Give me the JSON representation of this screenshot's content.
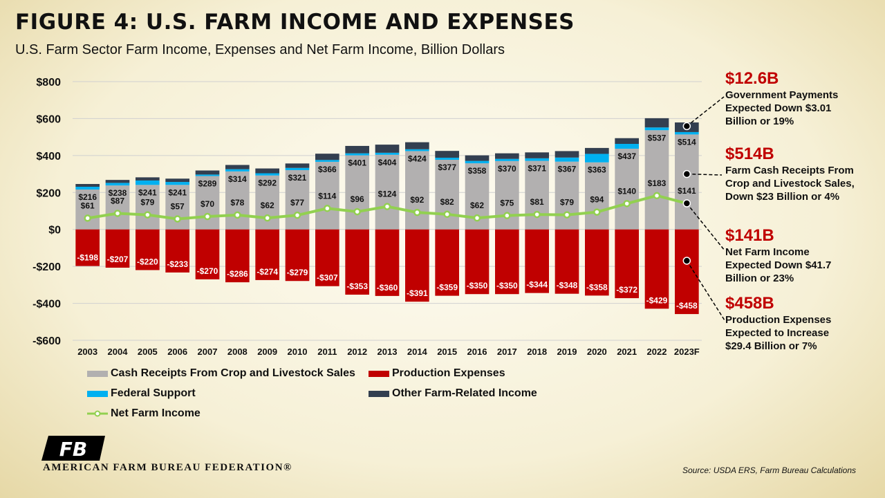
{
  "header": {
    "title": "FIGURE 4: U.S. FARM INCOME AND EXPENSES",
    "subtitle": "U.S. Farm Sector Farm Income, Expenses and Net Farm Income, Billion Dollars"
  },
  "colors": {
    "cash": "#b2b0b0",
    "expenses": "#c00000",
    "federal": "#00b0f0",
    "other": "#333f50",
    "net": "#92d050"
  },
  "chart_data": {
    "type": "bar",
    "stacked": true,
    "categories": [
      "2003",
      "2004",
      "2005",
      "2006",
      "2007",
      "2008",
      "2009",
      "2010",
      "2011",
      "2012",
      "2013",
      "2014",
      "2015",
      "2016",
      "2017",
      "2018",
      "2019",
      "2020",
      "2021",
      "2022",
      "2023F"
    ],
    "ylim": [
      -600,
      800
    ],
    "yticks": [
      800,
      600,
      400,
      200,
      0,
      -200,
      -400,
      -600
    ],
    "ytick_labels": [
      "$800",
      "$600",
      "$400",
      "$200",
      "$0",
      "-$200",
      "-$400",
      "-$600"
    ],
    "grid": true,
    "legend_position": "bottom",
    "series": [
      {
        "name": "Cash Receipts From Crop and Livestock Sales",
        "type": "bar",
        "values": [
          216,
          238,
          241,
          241,
          289,
          314,
          292,
          321,
          366,
          401,
          404,
          424,
          377,
          358,
          370,
          371,
          367,
          363,
          437,
          537,
          514
        ],
        "labels": [
          "$216",
          "$238",
          "$241",
          "$241",
          "$289",
          "$314",
          "$292",
          "$321",
          "$366",
          "$401",
          "$404",
          "$424",
          "$377",
          "$358",
          "$370",
          "$371",
          "$367",
          "$363",
          "$437",
          "$537",
          "$514"
        ]
      },
      {
        "name": "Production Expenses",
        "type": "bar",
        "values": [
          -198,
          -207,
          -220,
          -233,
          -270,
          -286,
          -274,
          -279,
          -307,
          -353,
          -360,
          -391,
          -359,
          -350,
          -350,
          -344,
          -348,
          -358,
          -372,
          -429,
          -458
        ],
        "labels": [
          "-$198",
          "-$207",
          "-$220",
          "-$233",
          "-$270",
          "-$286",
          "-$274",
          "-$279",
          "-$307",
          "-$353",
          "-$360",
          "-$391",
          "-$359",
          "-$350",
          "-$350",
          "-$344",
          "-$348",
          "-$358",
          "-$372",
          "-$429",
          "-$458"
        ]
      },
      {
        "name": "Federal Support",
        "type": "bar",
        "values": [
          15,
          14,
          24,
          16,
          8,
          12,
          12,
          12,
          10,
          11,
          11,
          10,
          11,
          13,
          12,
          14,
          22,
          46,
          26,
          15,
          13
        ]
      },
      {
        "name": "Other Farm-Related Income",
        "type": "bar",
        "values": [
          15,
          16,
          17,
          18,
          22,
          23,
          26,
          24,
          34,
          40,
          44,
          38,
          37,
          30,
          30,
          32,
          35,
          32,
          31,
          50,
          52
        ]
      },
      {
        "name": "Net Farm Income",
        "type": "line",
        "values": [
          61,
          87,
          79,
          57,
          70,
          78,
          62,
          77,
          114,
          96,
          124,
          92,
          82,
          62,
          75,
          81,
          79,
          94,
          140,
          183,
          141
        ],
        "labels": [
          "$61",
          "$87",
          "$79",
          "$57",
          "$70",
          "$78",
          "$62",
          "$77",
          "$114",
          "$96",
          "$124",
          "$92",
          "$82",
          "$62",
          "$75",
          "$81",
          "$79",
          "$94",
          "$140",
          "$183",
          "$141"
        ]
      }
    ]
  },
  "annotations": [
    {
      "value": "$12.6B",
      "text": [
        "Government Payments",
        "Expected Down $3.01",
        "Billion or 19%"
      ]
    },
    {
      "value": "$514B",
      "text": [
        "Farm Cash Receipts From",
        "Crop and Livestock Sales,",
        "Down $23 Billion or 4%"
      ]
    },
    {
      "value": "$141B",
      "text": [
        "Net Farm Income",
        "Expected Down $41.7",
        "Billion or 23%"
      ]
    },
    {
      "value": "$458B",
      "text": [
        "Production Expenses",
        "Expected to Increase",
        "$29.4 Billion or 7%"
      ]
    }
  ],
  "footer": {
    "org": "AMERICAN FARM BUREAU FEDERATION®",
    "logo_text": "FB",
    "source": "Source:  USDA ERS, Farm Bureau Calculations"
  }
}
